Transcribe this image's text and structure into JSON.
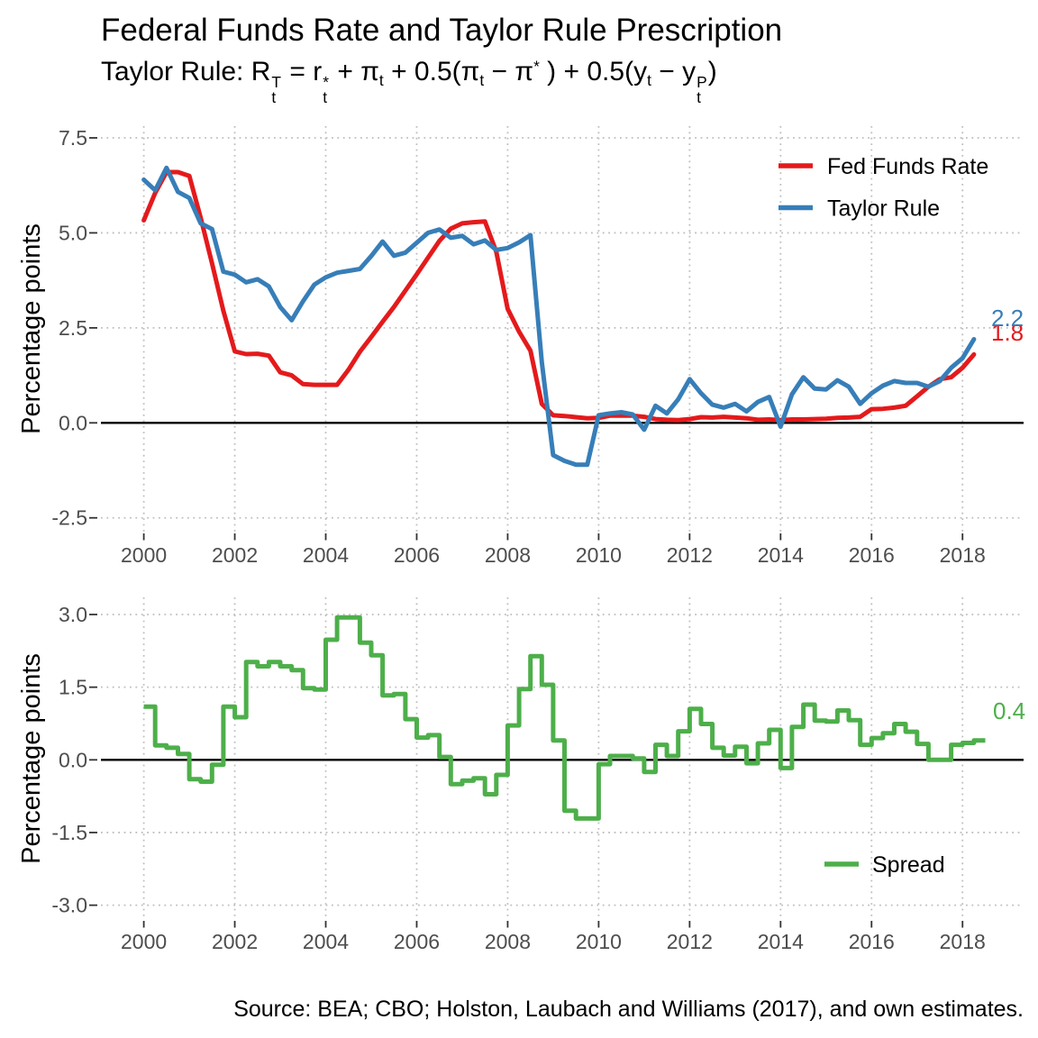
{
  "title": "Federal Funds Rate and Taylor Rule Prescription",
  "subtitle": {
    "plain": "Taylor Rule: R_t^T = r_t^* + π_t + 0.5(π_t − π^*) + 0.5(y_t − y_t^P)",
    "segments": [
      {
        "style": "n",
        "text": "Taylor Rule: R"
      },
      {
        "style": "s",
        "up": "T",
        "down": "t"
      },
      {
        "style": "n",
        "text": " = r"
      },
      {
        "style": "s",
        "up": "*",
        "down": "t"
      },
      {
        "style": "n",
        "text": " + π"
      },
      {
        "style": "d",
        "text": "t"
      },
      {
        "style": "n",
        "text": " + 0.5("
      },
      {
        "style": "n",
        "text": "π"
      },
      {
        "style": "d",
        "text": "t"
      },
      {
        "style": "n",
        "text": " − π"
      },
      {
        "style": "u",
        "text": "*"
      },
      {
        "style": "n",
        "text": " ) + 0.5("
      },
      {
        "style": "n",
        "text": "y"
      },
      {
        "style": "d",
        "text": "t"
      },
      {
        "style": "n",
        "text": " − y"
      },
      {
        "style": "s",
        "up": "P",
        "down": "t"
      },
      {
        "style": "n",
        "text": ")"
      }
    ]
  },
  "source_note": "Source: BEA; CBO; Holston, Laubach and Williams (2017), and own estimates.",
  "colors": {
    "fed_funds": "#E41A1C",
    "taylor_rule": "#377EB8",
    "spread": "#4DAF4A",
    "grid": "#bfbfbf",
    "tick_label": "#4d4d4d",
    "zero_line": "#000000"
  },
  "chart_data": [
    {
      "type": "line",
      "ylabel": "Percentage points",
      "x_start": 2000,
      "x_step": 0.25,
      "xlim": [
        2000,
        2018.25
      ],
      "ylim": [
        -2.5,
        7.5
      ],
      "x_ticks": [
        "2000",
        "2002",
        "2004",
        "2006",
        "2008",
        "2010",
        "2012",
        "2014",
        "2016",
        "2018"
      ],
      "y_ticks": [
        "7.5",
        "5.0",
        "2.5",
        "0.0",
        "-2.5"
      ],
      "zero_line": true,
      "legend_position": "top-right",
      "series": [
        {
          "name": "Fed Funds Rate",
          "color": "#E41A1C",
          "end_label": "1.8",
          "values": [
            5.33,
            6.05,
            6.6,
            6.6,
            6.5,
            5.4,
            4.2,
            2.95,
            1.88,
            1.81,
            1.82,
            1.77,
            1.33,
            1.25,
            1.02,
            1.0,
            1.0,
            1.0,
            1.4,
            1.87,
            2.26,
            2.66,
            3.05,
            3.48,
            3.91,
            4.35,
            4.79,
            5.11,
            5.25,
            5.28,
            5.3,
            4.5,
            3.0,
            2.4,
            1.9,
            0.5,
            0.2,
            0.18,
            0.15,
            0.12,
            0.13,
            0.19,
            0.19,
            0.19,
            0.16,
            0.1,
            0.08,
            0.07,
            0.1,
            0.15,
            0.14,
            0.16,
            0.14,
            0.12,
            0.08,
            0.09,
            0.07,
            0.09,
            0.09,
            0.1,
            0.11,
            0.13,
            0.14,
            0.16,
            0.36,
            0.37,
            0.4,
            0.45,
            0.7,
            0.95,
            1.15,
            1.2,
            1.45,
            1.8
          ]
        },
        {
          "name": "Taylor Rule",
          "color": "#377EB8",
          "end_label": "2.2",
          "values": [
            6.4,
            6.12,
            6.71,
            6.08,
            5.92,
            5.25,
            5.1,
            3.98,
            3.9,
            3.7,
            3.78,
            3.59,
            3.05,
            2.7,
            3.2,
            3.64,
            3.83,
            3.95,
            4.0,
            4.05,
            4.39,
            4.77,
            4.4,
            4.48,
            4.74,
            5.0,
            5.09,
            4.87,
            4.92,
            4.7,
            4.8,
            4.55,
            4.6,
            4.75,
            4.94,
            1.6,
            -0.85,
            -1.0,
            -1.1,
            -1.1,
            0.2,
            0.25,
            0.28,
            0.22,
            -0.18,
            0.45,
            0.25,
            0.62,
            1.15,
            0.78,
            0.48,
            0.4,
            0.5,
            0.3,
            0.55,
            0.68,
            -0.1,
            0.75,
            1.2,
            0.9,
            0.88,
            1.12,
            0.95,
            0.5,
            0.78,
            0.98,
            1.1,
            1.05,
            1.05,
            0.95,
            1.1,
            1.45,
            1.7,
            2.2
          ]
        }
      ]
    },
    {
      "type": "step",
      "ylabel": "Percentage points",
      "x_start": 2000,
      "x_step": 0.25,
      "xlim": [
        2000,
        2018.5
      ],
      "ylim": [
        -3.0,
        3.0
      ],
      "x_ticks": [
        "2000",
        "2002",
        "2004",
        "2006",
        "2008",
        "2010",
        "2012",
        "2014",
        "2016",
        "2018"
      ],
      "y_ticks": [
        "3.0",
        "1.5",
        "0.0",
        "-1.5",
        "-3.0"
      ],
      "zero_line": true,
      "legend_position": "bottom-right",
      "series": [
        {
          "name": "Spread",
          "color": "#4DAF4A",
          "end_label": "0.4",
          "values": [
            1.1,
            0.3,
            0.25,
            0.12,
            -0.4,
            -0.45,
            -0.1,
            1.1,
            0.88,
            2.02,
            1.93,
            2.02,
            1.93,
            1.85,
            1.48,
            1.45,
            2.48,
            2.94,
            2.94,
            2.42,
            2.16,
            1.33,
            1.36,
            0.84,
            0.46,
            0.51,
            0.06,
            -0.5,
            -0.43,
            -0.38,
            -0.71,
            -0.31,
            0.71,
            1.46,
            2.14,
            1.55,
            0.4,
            -1.05,
            -1.21,
            -1.21,
            -0.09,
            0.08,
            0.08,
            0.03,
            -0.25,
            0.31,
            0.08,
            0.59,
            1.05,
            0.74,
            0.25,
            0.09,
            0.27,
            -0.07,
            0.34,
            0.62,
            -0.17,
            0.68,
            1.14,
            0.81,
            0.79,
            1.02,
            0.82,
            0.31,
            0.45,
            0.55,
            0.74,
            0.58,
            0.33,
            0.0,
            0.0,
            0.31,
            0.35,
            0.4
          ]
        }
      ]
    }
  ]
}
